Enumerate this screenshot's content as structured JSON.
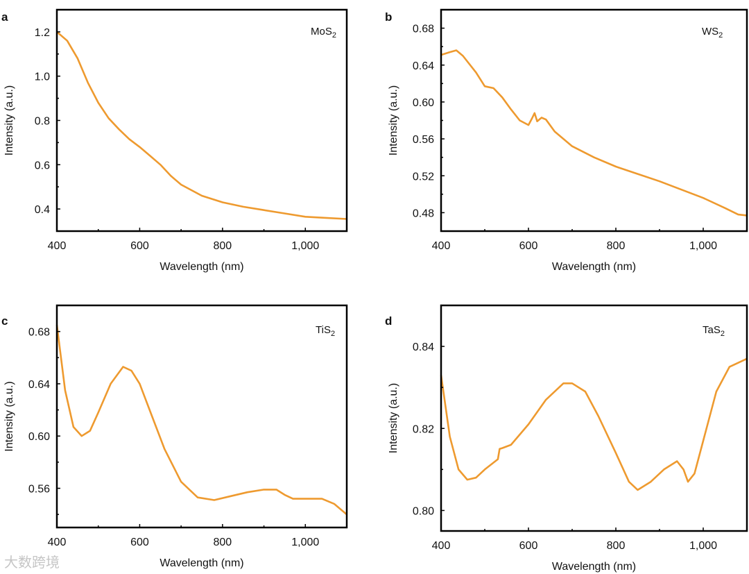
{
  "line_color": "#EE9A2F",
  "watermark": "大数跨境",
  "chart_data": [
    {
      "type": "line",
      "panel": "a",
      "label": "MoS",
      "label_sub": "2",
      "xlabel": "Wavelength (nm)",
      "ylabel": "Intensity (a.u.)",
      "xlim": [
        400,
        1100
      ],
      "ylim": [
        0.3,
        1.3
      ],
      "xticks": [
        400,
        600,
        800,
        1000
      ],
      "xtick_labels": [
        "400",
        "600",
        "800",
        "1,000"
      ],
      "xminor": [
        500,
        700,
        900
      ],
      "yticks": [
        0.4,
        0.6,
        0.8,
        1.0,
        1.2
      ],
      "ytick_labels": [
        "0.4",
        "0.6",
        "0.8",
        "1.0",
        "1.2"
      ],
      "yminor": [
        0.5,
        0.7,
        0.9,
        1.1
      ],
      "x": [
        400,
        425,
        450,
        475,
        500,
        525,
        550,
        575,
        600,
        625,
        650,
        675,
        700,
        750,
        800,
        850,
        900,
        950,
        1000,
        1050,
        1100
      ],
      "y": [
        1.2,
        1.16,
        1.08,
        0.97,
        0.88,
        0.81,
        0.76,
        0.715,
        0.68,
        0.64,
        0.6,
        0.55,
        0.51,
        0.46,
        0.43,
        0.41,
        0.395,
        0.38,
        0.365,
        0.36,
        0.355
      ]
    },
    {
      "type": "line",
      "panel": "b",
      "label": "WS",
      "label_sub": "2",
      "xlabel": "Wavelength (nm)",
      "ylabel": "Intensity (a.u.)",
      "xlim": [
        400,
        1100
      ],
      "ylim": [
        0.46,
        0.7
      ],
      "xticks": [
        400,
        600,
        800,
        1000
      ],
      "xtick_labels": [
        "400",
        "600",
        "800",
        "1,000"
      ],
      "xminor": [
        500,
        700,
        900
      ],
      "yticks": [
        0.48,
        0.52,
        0.56,
        0.6,
        0.64,
        0.68
      ],
      "ytick_labels": [
        "0.48",
        "0.52",
        "0.56",
        "0.60",
        "0.64",
        "0.68"
      ],
      "yminor": [
        0.5,
        0.54,
        0.58,
        0.62,
        0.66
      ],
      "x": [
        400,
        420,
        435,
        450,
        480,
        500,
        520,
        540,
        560,
        580,
        600,
        608,
        614,
        620,
        630,
        640,
        660,
        700,
        750,
        800,
        850,
        900,
        950,
        1000,
        1050,
        1080,
        1100
      ],
      "y": [
        0.651,
        0.654,
        0.656,
        0.65,
        0.632,
        0.617,
        0.615,
        0.605,
        0.592,
        0.58,
        0.575,
        0.582,
        0.588,
        0.579,
        0.583,
        0.581,
        0.568,
        0.552,
        0.54,
        0.53,
        0.522,
        0.514,
        0.505,
        0.496,
        0.485,
        0.478,
        0.477
      ]
    },
    {
      "type": "line",
      "panel": "c",
      "label": "TiS",
      "label_sub": "2",
      "xlabel": "Wavelength (nm)",
      "ylabel": "Intensity (a.u.)",
      "xlim": [
        400,
        1100
      ],
      "ylim": [
        0.53,
        0.7
      ],
      "xticks": [
        400,
        600,
        800,
        1000
      ],
      "xtick_labels": [
        "400",
        "600",
        "800",
        "1,000"
      ],
      "xminor": [
        500,
        700,
        900
      ],
      "yticks": [
        0.56,
        0.6,
        0.64,
        0.68
      ],
      "ytick_labels": [
        "0.56",
        "0.60",
        "0.64",
        "0.68"
      ],
      "yminor": [
        0.54,
        0.58,
        0.62,
        0.66
      ],
      "x": [
        400,
        420,
        440,
        460,
        480,
        500,
        530,
        560,
        580,
        600,
        630,
        660,
        700,
        740,
        780,
        820,
        860,
        900,
        930,
        950,
        970,
        1000,
        1040,
        1070,
        1100
      ],
      "y": [
        0.685,
        0.635,
        0.607,
        0.6,
        0.604,
        0.618,
        0.64,
        0.653,
        0.65,
        0.64,
        0.615,
        0.59,
        0.565,
        0.553,
        0.551,
        0.554,
        0.557,
        0.559,
        0.559,
        0.555,
        0.552,
        0.552,
        0.552,
        0.548,
        0.54
      ]
    },
    {
      "type": "line",
      "panel": "d",
      "label": "TaS",
      "label_sub": "2",
      "xlabel": "Wavelength (nm)",
      "ylabel": "Intensity (a.u.)",
      "xlim": [
        400,
        1100
      ],
      "ylim": [
        0.795,
        0.85
      ],
      "xticks": [
        400,
        600,
        800,
        1000
      ],
      "xtick_labels": [
        "400",
        "600",
        "800",
        "1,000"
      ],
      "xminor": [
        500,
        700,
        900
      ],
      "yticks": [
        0.8,
        0.82,
        0.84
      ],
      "ytick_labels": [
        "0.80",
        "0.82",
        "0.84"
      ],
      "yminor": [
        0.81,
        0.83
      ],
      "x": [
        400,
        420,
        440,
        460,
        480,
        500,
        530,
        534,
        540,
        560,
        600,
        640,
        680,
        700,
        730,
        760,
        800,
        830,
        850,
        880,
        910,
        940,
        955,
        965,
        980,
        1000,
        1030,
        1060,
        1100
      ],
      "y": [
        0.833,
        0.818,
        0.81,
        0.8075,
        0.808,
        0.81,
        0.8125,
        0.815,
        0.8152,
        0.816,
        0.821,
        0.827,
        0.831,
        0.831,
        0.829,
        0.823,
        0.814,
        0.807,
        0.805,
        0.807,
        0.81,
        0.812,
        0.81,
        0.807,
        0.809,
        0.817,
        0.829,
        0.835,
        0.837
      ]
    }
  ]
}
